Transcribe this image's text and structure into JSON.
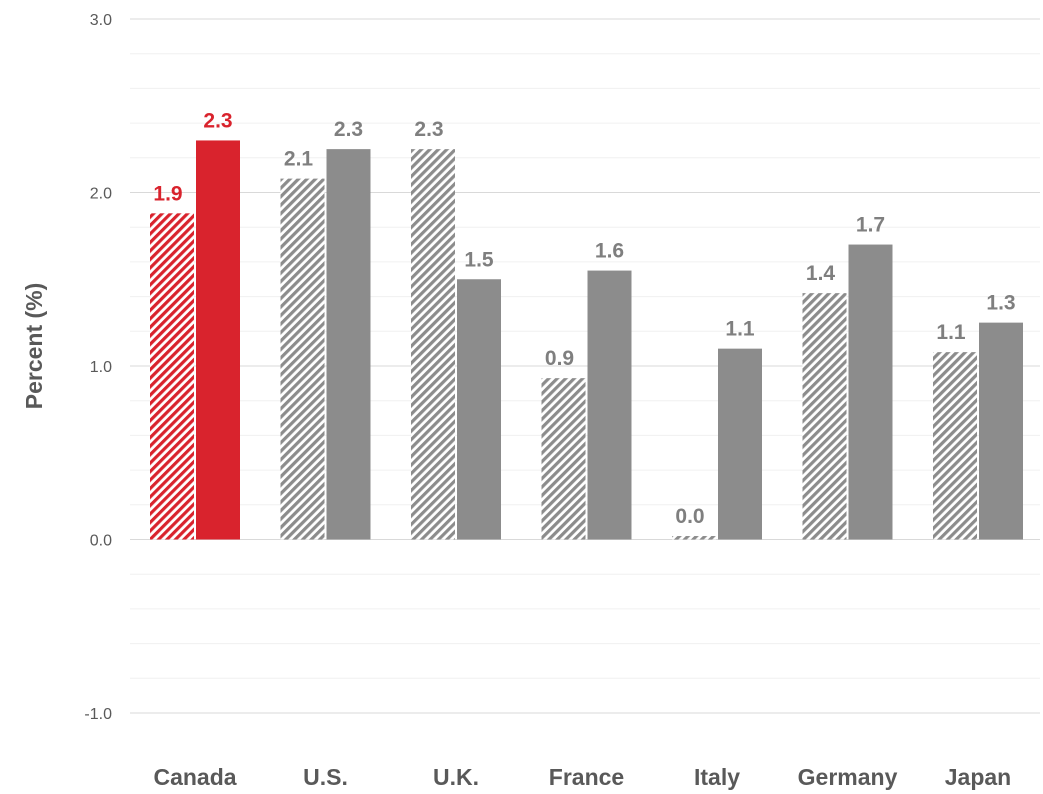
{
  "chart_data": {
    "type": "bar",
    "title": "",
    "xlabel": "",
    "ylabel": "Percent (%)",
    "ylim": [
      -1.0,
      3.0
    ],
    "yticks": [
      "3.0",
      "2.0",
      "1.0",
      "0.0",
      "-1.0"
    ],
    "grid": true,
    "legend": "none",
    "categories": [
      "Canada",
      "U.S.",
      "U.K.",
      "France",
      "Italy",
      "Germany",
      "Japan"
    ],
    "series": [
      {
        "style": "hatched",
        "values": [
          1.88,
          2.08,
          2.25,
          0.93,
          0.02,
          1.42,
          1.08
        ],
        "labels": [
          "1.9",
          "2.1",
          "2.3",
          "0.9",
          "0.0",
          "1.4",
          "1.1"
        ]
      },
      {
        "style": "solid",
        "values": [
          2.3,
          2.25,
          1.5,
          1.55,
          1.1,
          1.7,
          1.25
        ],
        "labels": [
          "2.3",
          "2.3",
          "1.5",
          "1.6",
          "1.1",
          "1.7",
          "1.3"
        ]
      }
    ],
    "colors": {
      "highlight": "#d9232d",
      "other": "#8c8c8c",
      "label_other": "#7f7f7f",
      "grid_major": "#d9d9d9",
      "grid_minor": "#f0f0f0",
      "text": "#595959"
    }
  }
}
